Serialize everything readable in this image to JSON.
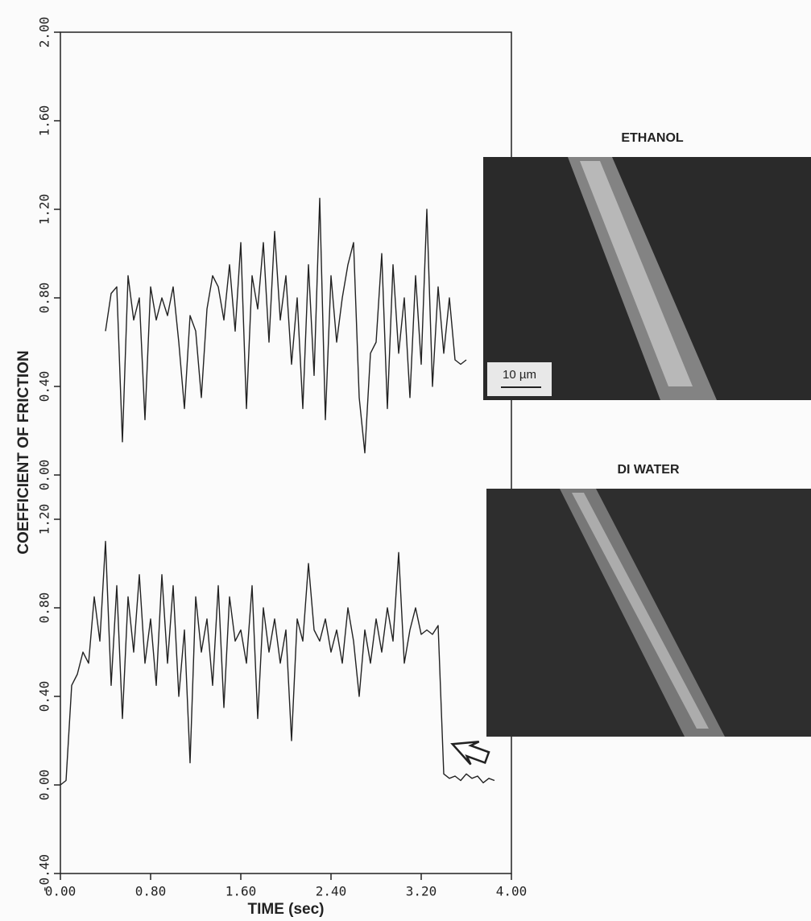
{
  "chart_data": [
    {
      "type": "line",
      "ylabel": "COEFFICIENT OF FRICTION",
      "xlim": [
        0,
        4
      ],
      "ylim": [
        0,
        2
      ],
      "yticks": [
        {
          "value": 0,
          "label": "0.00"
        },
        {
          "value": 0.4,
          "label": "0.40"
        },
        {
          "value": 0.8,
          "label": "0.80"
        },
        {
          "value": 1.2,
          "label": "1.20"
        },
        {
          "value": 1.6,
          "label": "1.60"
        },
        {
          "value": 2,
          "label": "2.00"
        }
      ],
      "x": [
        0.4,
        0.45,
        0.5,
        0.55,
        0.6,
        0.65,
        0.7,
        0.75,
        0.8,
        0.85,
        0.9,
        0.95,
        1.0,
        1.05,
        1.1,
        1.15,
        1.2,
        1.25,
        1.3,
        1.35,
        1.4,
        1.45,
        1.5,
        1.55,
        1.6,
        1.65,
        1.7,
        1.75,
        1.8,
        1.85,
        1.9,
        1.95,
        2.0,
        2.05,
        2.1,
        2.15,
        2.2,
        2.25,
        2.3,
        2.35,
        2.4,
        2.45,
        2.5,
        2.55,
        2.6,
        2.65,
        2.7,
        2.75,
        2.8,
        2.85,
        2.9,
        2.95,
        3.0,
        3.05,
        3.1,
        3.15,
        3.2,
        3.25,
        3.3,
        3.35,
        3.4,
        3.45,
        3.5,
        3.55,
        3.6
      ],
      "series": [
        {
          "color": "#222222",
          "values": [
            0.65,
            0.82,
            0.85,
            0.15,
            0.9,
            0.7,
            0.8,
            0.25,
            0.85,
            0.7,
            0.8,
            0.72,
            0.85,
            0.6,
            0.3,
            0.72,
            0.65,
            0.35,
            0.75,
            0.9,
            0.85,
            0.7,
            0.95,
            0.65,
            1.05,
            0.3,
            0.9,
            0.75,
            1.05,
            0.6,
            1.1,
            0.7,
            0.9,
            0.5,
            0.8,
            0.3,
            0.95,
            0.45,
            1.25,
            0.25,
            0.9,
            0.6,
            0.8,
            0.95,
            1.05,
            0.35,
            0.1,
            0.55,
            0.6,
            1.0,
            0.3,
            0.95,
            0.55,
            0.8,
            0.35,
            0.9,
            0.5,
            1.2,
            0.4,
            0.85,
            0.55,
            0.8,
            0.52,
            0.5,
            0.52
          ]
        }
      ]
    },
    {
      "type": "line",
      "xlabel": "TIME (sec)",
      "xlim": [
        0,
        4
      ],
      "ylim": [
        -0.4,
        1.2
      ],
      "xticks": [
        {
          "value": 0,
          "label": "0.00"
        },
        {
          "value": 0.8,
          "label": "0.80"
        },
        {
          "value": 1.6,
          "label": "1.60"
        },
        {
          "value": 2.4,
          "label": "2.40"
        },
        {
          "value": 3.2,
          "label": "3.20"
        },
        {
          "value": 4,
          "label": "4.00"
        }
      ],
      "yticks": [
        {
          "value": -0.4,
          "label": "-0.40"
        },
        {
          "value": 0,
          "label": "0.00"
        },
        {
          "value": 0.4,
          "label": "0.40"
        },
        {
          "value": 0.8,
          "label": "0.80"
        },
        {
          "value": 1.2,
          "label": "1.20"
        }
      ],
      "x": [
        0.0,
        0.05,
        0.1,
        0.15,
        0.2,
        0.25,
        0.3,
        0.35,
        0.4,
        0.45,
        0.5,
        0.55,
        0.6,
        0.65,
        0.7,
        0.75,
        0.8,
        0.85,
        0.9,
        0.95,
        1.0,
        1.05,
        1.1,
        1.15,
        1.2,
        1.25,
        1.3,
        1.35,
        1.4,
        1.45,
        1.5,
        1.55,
        1.6,
        1.65,
        1.7,
        1.75,
        1.8,
        1.85,
        1.9,
        1.95,
        2.0,
        2.05,
        2.1,
        2.15,
        2.2,
        2.25,
        2.3,
        2.35,
        2.4,
        2.45,
        2.5,
        2.55,
        2.6,
        2.65,
        2.7,
        2.75,
        2.8,
        2.85,
        2.9,
        2.95,
        3.0,
        3.05,
        3.1,
        3.15,
        3.2,
        3.25,
        3.3,
        3.35,
        3.4,
        3.45,
        3.5,
        3.55,
        3.6,
        3.65,
        3.7,
        3.75,
        3.8,
        3.85
      ],
      "series": [
        {
          "color": "#222222",
          "values": [
            0.0,
            0.02,
            0.45,
            0.5,
            0.6,
            0.55,
            0.85,
            0.65,
            1.1,
            0.45,
            0.9,
            0.3,
            0.85,
            0.6,
            0.95,
            0.55,
            0.75,
            0.45,
            0.95,
            0.55,
            0.9,
            0.4,
            0.7,
            0.1,
            0.85,
            0.6,
            0.75,
            0.45,
            0.9,
            0.35,
            0.85,
            0.65,
            0.7,
            0.55,
            0.9,
            0.3,
            0.8,
            0.6,
            0.75,
            0.55,
            0.7,
            0.2,
            0.75,
            0.65,
            1.0,
            0.7,
            0.65,
            0.75,
            0.6,
            0.7,
            0.55,
            0.8,
            0.65,
            0.4,
            0.7,
            0.55,
            0.75,
            0.6,
            0.8,
            0.65,
            1.05,
            0.55,
            0.7,
            0.8,
            0.68,
            0.7,
            0.68,
            0.72,
            0.05,
            0.03,
            0.04,
            0.02,
            0.05,
            0.03,
            0.04,
            0.01,
            0.03,
            0.02
          ]
        }
      ]
    }
  ],
  "images": [
    {
      "label": "ETHANOL",
      "scale_bar": "10 µm"
    },
    {
      "label": "DI WATER"
    }
  ]
}
